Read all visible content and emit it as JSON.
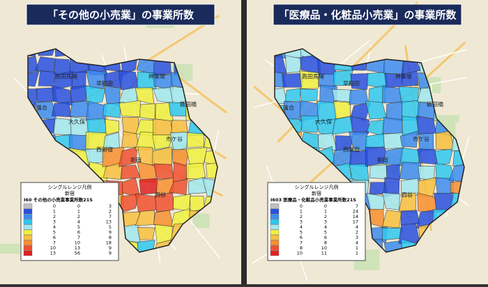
{
  "panels": [
    {
      "title": "「その他の小売業」の事業所数",
      "legend": {
        "heading": "シングルレンジ凡例",
        "area": "新宿",
        "layer": "I60 その他の小売業事業所数21S",
        "rows": [
          {
            "from": 0,
            "to": 0,
            "count": 3,
            "color": "#c0c0c0"
          },
          {
            "from": 1,
            "to": 1,
            "count": 2,
            "color": "#2850e0"
          },
          {
            "from": 2,
            "to": 2,
            "count": 7,
            "color": "#3c8cf0"
          },
          {
            "from": 3,
            "to": 4,
            "count": 13,
            "color": "#30c8f0"
          },
          {
            "from": 4,
            "to": 5,
            "count": 5,
            "color": "#a0e8f0"
          },
          {
            "from": 5,
            "to": 6,
            "count": 9,
            "color": "#f0f040"
          },
          {
            "from": 6,
            "to": 7,
            "count": 8,
            "color": "#f8c040"
          },
          {
            "from": 7,
            "to": 10,
            "count": 18,
            "color": "#f89030"
          },
          {
            "from": 10,
            "to": 13,
            "count": 9,
            "color": "#f05030"
          },
          {
            "from": 13,
            "to": 56,
            "count": 9,
            "color": "#e02020"
          }
        ]
      }
    },
    {
      "title": "「医療品・化粧品小売業」の事業所数",
      "legend": {
        "heading": "シングルレンジ凡例",
        "area": "新宿",
        "layer": "I603 医療品・化粧品小売業事業所数21S",
        "rows": [
          {
            "from": 0,
            "to": 0,
            "count": 7,
            "color": "#c0c0c0"
          },
          {
            "from": 1,
            "to": 1,
            "count": 24,
            "color": "#2850e0"
          },
          {
            "from": 2,
            "to": 2,
            "count": 14,
            "color": "#3c8cf0"
          },
          {
            "from": 3,
            "to": 3,
            "count": 17,
            "color": "#30c8f0"
          },
          {
            "from": 4,
            "to": 4,
            "count": 4,
            "color": "#a0e8f0"
          },
          {
            "from": 5,
            "to": 5,
            "count": 2,
            "color": "#f0f040"
          },
          {
            "from": 6,
            "to": 6,
            "count": 3,
            "color": "#f8c040"
          },
          {
            "from": 7,
            "to": 8,
            "count": 4,
            "color": "#f89030"
          },
          {
            "from": 8,
            "to": 10,
            "count": 1,
            "color": "#f05030"
          },
          {
            "from": 10,
            "to": 11,
            "count": 1,
            "color": "#e02020"
          }
        ]
      }
    }
  ],
  "place_labels": [
    "落合",
    "高田馬場",
    "早稲田",
    "神楽坂",
    "大久保",
    "西新宿",
    "新宿",
    "四谷",
    "市ケ谷",
    "飯田橋"
  ]
}
